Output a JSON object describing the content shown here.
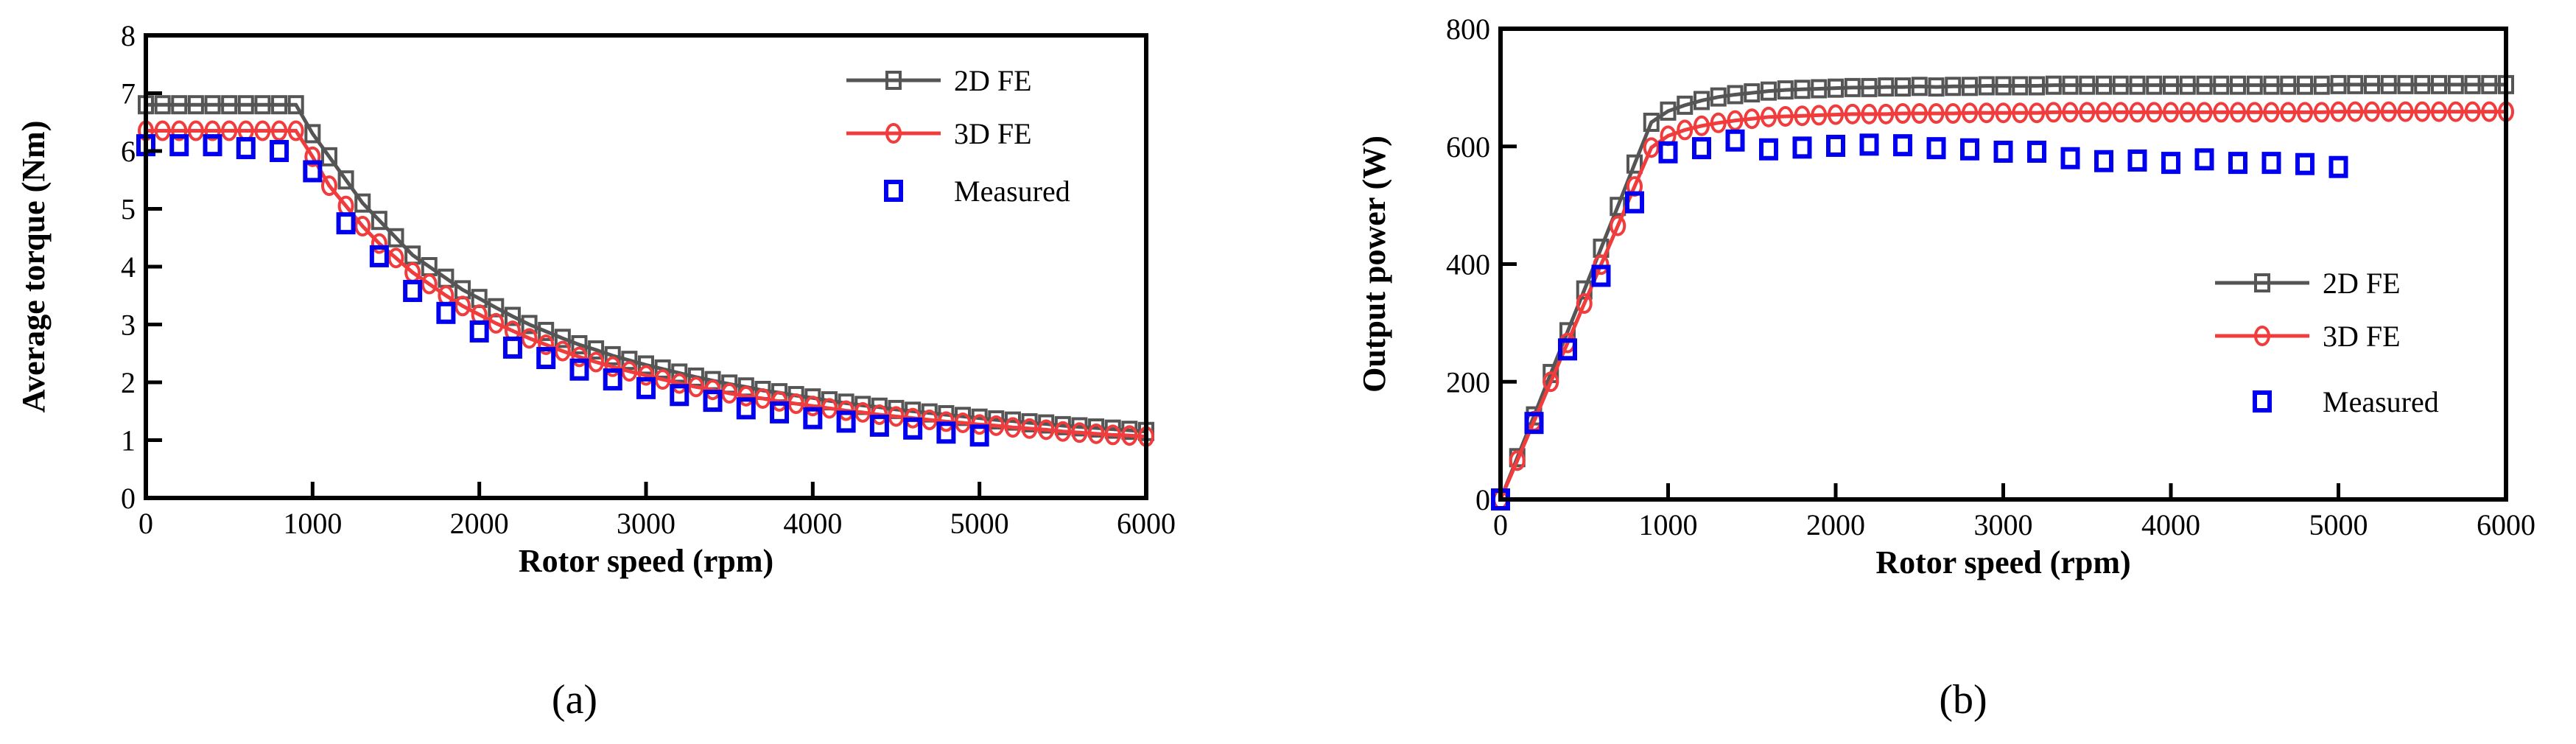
{
  "chart_data": [
    {
      "type": "line",
      "panel_label": "(a)",
      "xlabel": "Rotor speed (rpm)",
      "ylabel": "Average torque (Nm)",
      "xlim": [
        0,
        6000
      ],
      "ylim": [
        0,
        8
      ],
      "xticks": [
        0,
        1000,
        2000,
        3000,
        4000,
        5000,
        6000
      ],
      "yticks": [
        0,
        1,
        2,
        3,
        4,
        5,
        6,
        7,
        8
      ],
      "legend_position": "top-right",
      "colors": {
        "2D FE": "#555555",
        "3D FE": "#f03c3c",
        "Measured": "#0000ee"
      },
      "series": [
        {
          "name": "2D FE",
          "marker": "square",
          "x_start": 0,
          "x_step": 100,
          "values": [
            6.8,
            6.8,
            6.8,
            6.8,
            6.8,
            6.8,
            6.8,
            6.8,
            6.8,
            6.8,
            6.3,
            5.9,
            5.5,
            5.1,
            4.8,
            4.5,
            4.2,
            4.0,
            3.8,
            3.6,
            3.45,
            3.29,
            3.14,
            3.0,
            2.88,
            2.76,
            2.65,
            2.56,
            2.46,
            2.38,
            2.3,
            2.23,
            2.16,
            2.09,
            2.03,
            1.97,
            1.92,
            1.86,
            1.82,
            1.77,
            1.73,
            1.68,
            1.64,
            1.6,
            1.57,
            1.53,
            1.5,
            1.47,
            1.44,
            1.41,
            1.38,
            1.35,
            1.33,
            1.3,
            1.28,
            1.25,
            1.23,
            1.21,
            1.19,
            1.17,
            1.15
          ]
        },
        {
          "name": "3D FE",
          "marker": "circle",
          "x_start": 0,
          "x_step": 100,
          "values": [
            6.35,
            6.35,
            6.35,
            6.35,
            6.35,
            6.35,
            6.35,
            6.35,
            6.35,
            6.35,
            5.9,
            5.4,
            5.05,
            4.7,
            4.4,
            4.15,
            3.9,
            3.7,
            3.5,
            3.32,
            3.17,
            3.02,
            2.89,
            2.76,
            2.65,
            2.54,
            2.44,
            2.35,
            2.27,
            2.19,
            2.12,
            2.05,
            1.98,
            1.92,
            1.87,
            1.81,
            1.76,
            1.72,
            1.67,
            1.63,
            1.59,
            1.55,
            1.51,
            1.48,
            1.44,
            1.41,
            1.38,
            1.35,
            1.32,
            1.3,
            1.27,
            1.25,
            1.22,
            1.2,
            1.18,
            1.15,
            1.13,
            1.11,
            1.09,
            1.08,
            1.06
          ]
        },
        {
          "name": "Measured",
          "marker": "square-open",
          "x_start": 0,
          "x_step": 200,
          "line": false,
          "values": [
            6.1,
            6.1,
            6.1,
            6.05,
            6.0,
            5.65,
            4.75,
            4.18,
            3.58,
            3.2,
            2.88,
            2.6,
            2.42,
            2.22,
            2.05,
            1.9,
            1.78,
            1.68,
            1.55,
            1.48,
            1.38,
            1.32,
            1.25,
            1.2,
            1.13,
            1.08
          ]
        }
      ]
    },
    {
      "type": "line",
      "panel_label": "(b)",
      "xlabel": "Rotor speed (rpm)",
      "ylabel": "Output power (W)",
      "xlim": [
        0,
        6000
      ],
      "ylim": [
        0,
        800
      ],
      "xticks": [
        0,
        1000,
        2000,
        3000,
        4000,
        5000,
        6000
      ],
      "yticks": [
        0,
        200,
        400,
        600,
        800
      ],
      "legend_position": "center-right",
      "colors": {
        "2D FE": "#555555",
        "3D FE": "#f03c3c",
        "Measured": "#0000ee"
      },
      "series": [
        {
          "name": "2D FE",
          "marker": "square",
          "x_start": 0,
          "x_step": 100,
          "values": [
            0,
            71,
            142,
            214,
            285,
            356,
            427,
            498,
            570,
            641,
            660,
            670,
            678,
            684,
            688,
            691,
            694,
            696,
            697,
            698,
            699,
            700,
            700,
            701,
            701,
            702,
            701,
            702,
            702,
            703,
            703,
            703,
            703,
            704,
            704,
            704,
            704,
            704,
            704,
            704,
            704,
            704,
            704,
            704,
            704,
            704,
            704,
            704,
            704,
            704,
            705,
            705,
            705,
            705,
            705,
            705,
            705,
            705,
            705,
            705,
            705
          ]
        },
        {
          "name": "3D FE",
          "marker": "circle",
          "x_start": 0,
          "x_step": 100,
          "values": [
            0,
            66,
            133,
            200,
            266,
            333,
            399,
            465,
            532,
            598,
            618,
            628,
            635,
            640,
            644,
            647,
            650,
            651,
            652,
            653,
            654,
            655,
            655,
            655,
            656,
            656,
            656,
            656,
            657,
            657,
            657,
            657,
            657,
            658,
            658,
            658,
            658,
            658,
            658,
            658,
            658,
            658,
            658,
            658,
            658,
            658,
            658,
            658,
            658,
            658,
            659,
            659,
            659,
            659,
            659,
            659,
            659,
            659,
            659,
            659,
            659
          ]
        },
        {
          "name": "Measured",
          "marker": "square-open",
          "x_start": 0,
          "x_step": 200,
          "line": false,
          "values": [
            0,
            130,
            255,
            380,
            505,
            590,
            597,
            610,
            595,
            598,
            601,
            603,
            602,
            597,
            595,
            591,
            591,
            580,
            575,
            576,
            572,
            578,
            572,
            572,
            570,
            565
          ]
        }
      ]
    }
  ]
}
